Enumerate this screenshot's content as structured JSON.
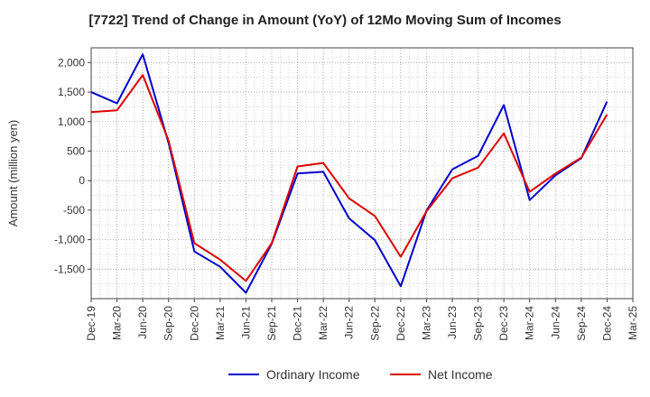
{
  "chart_data": {
    "type": "line",
    "title": "[7722]  Trend of Change in Amount (YoY) of 12Mo Moving Sum of Incomes",
    "xlabel": "",
    "ylabel": "Amount (million yen)",
    "categories": [
      "Dec-19",
      "Mar-20",
      "Jun-20",
      "Sep-20",
      "Dec-20",
      "Mar-21",
      "Jun-21",
      "Sep-21",
      "Dec-21",
      "Mar-22",
      "Jun-22",
      "Sep-22",
      "Dec-22",
      "Mar-23",
      "Jun-23",
      "Sep-23",
      "Dec-23",
      "Mar-24",
      "Jun-24",
      "Sep-24",
      "Dec-24",
      "Mar-25"
    ],
    "yticks": [
      2000,
      1500,
      1000,
      500,
      0,
      -500,
      -1000,
      -1500
    ],
    "ytick_labels": [
      "2,000",
      "1,500",
      "1,000",
      "500",
      "0",
      "-500",
      "-1,000",
      "-1,500"
    ],
    "ylim": [
      -2000,
      2250
    ],
    "grid": true,
    "legend_position": "bottom",
    "series": [
      {
        "name": "Ordinary Income",
        "color": "#0000cc",
        "values": [
          1500,
          1310,
          2140,
          640,
          -1200,
          -1460,
          -1900,
          -1070,
          120,
          150,
          -640,
          -1010,
          -1790,
          -510,
          190,
          420,
          1280,
          -330,
          90,
          380,
          1340,
          null
        ]
      },
      {
        "name": "Net Income",
        "color": "#dd0000",
        "values": [
          1160,
          1190,
          1790,
          680,
          -1060,
          -1340,
          -1700,
          -1060,
          240,
          300,
          -300,
          -600,
          -1290,
          -520,
          40,
          220,
          800,
          -190,
          120,
          390,
          1120,
          null
        ]
      }
    ]
  }
}
